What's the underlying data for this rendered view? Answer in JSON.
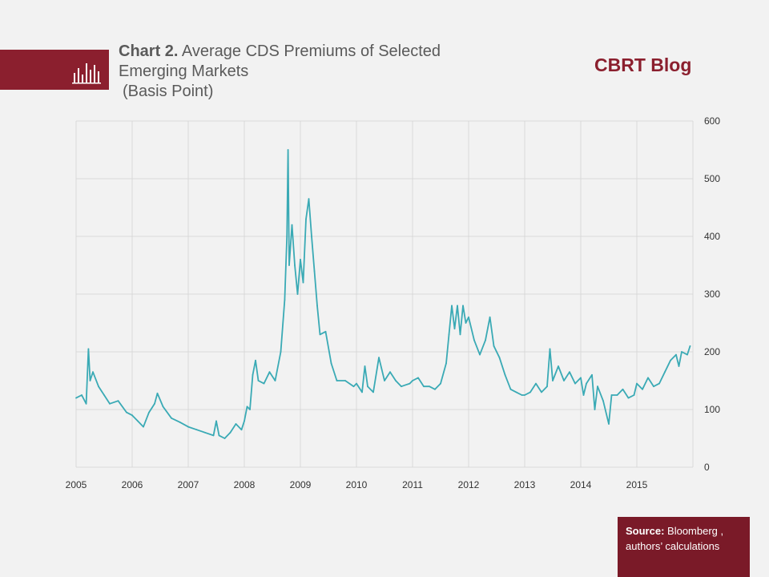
{
  "header": {
    "chart_number": "Chart 2.",
    "title_line1": "Average CDS Premiums of Selected",
    "title_line2": "Emerging Markets",
    "title_unit": "(Basis Point)",
    "brand": "CBRT Blog",
    "icon": "bar-chart-icon"
  },
  "footer": {
    "source_label": "Source:",
    "source_text1": "Bloomberg ,",
    "source_text2": "authors’ calculations"
  },
  "colors": {
    "accent": "#8b1f2e",
    "line": "#3aaab5",
    "grid": "#d9d9d9"
  },
  "chart_data": {
    "type": "line",
    "title": "Average CDS Premiums of Selected Emerging Markets",
    "ylabel": "(Basis Point)",
    "xlabel": "",
    "ylim": [
      0,
      600
    ],
    "xlim": [
      2005,
      2016
    ],
    "x_ticks": [
      "2005",
      "2006",
      "2007",
      "2008",
      "2009",
      "2010",
      "2011",
      "2012",
      "2013",
      "2014",
      "2015"
    ],
    "y_ticks": [
      "0",
      "100",
      "200",
      "300",
      "400",
      "500",
      "600"
    ],
    "y_axis_position": "right",
    "grid": true,
    "series": [
      {
        "color": "#3aaab5",
        "points": [
          [
            2005.0,
            120
          ],
          [
            2005.1,
            125
          ],
          [
            2005.18,
            110
          ],
          [
            2005.22,
            205
          ],
          [
            2005.25,
            150
          ],
          [
            2005.3,
            165
          ],
          [
            2005.4,
            140
          ],
          [
            2005.5,
            125
          ],
          [
            2005.6,
            110
          ],
          [
            2005.75,
            115
          ],
          [
            2005.9,
            95
          ],
          [
            2006.0,
            90
          ],
          [
            2006.1,
            80
          ],
          [
            2006.2,
            70
          ],
          [
            2006.3,
            95
          ],
          [
            2006.4,
            110
          ],
          [
            2006.45,
            128
          ],
          [
            2006.55,
            105
          ],
          [
            2006.7,
            85
          ],
          [
            2006.85,
            78
          ],
          [
            2007.0,
            70
          ],
          [
            2007.15,
            65
          ],
          [
            2007.3,
            60
          ],
          [
            2007.45,
            55
          ],
          [
            2007.5,
            80
          ],
          [
            2007.55,
            55
          ],
          [
            2007.65,
            50
          ],
          [
            2007.75,
            60
          ],
          [
            2007.85,
            75
          ],
          [
            2007.95,
            65
          ],
          [
            2008.0,
            80
          ],
          [
            2008.05,
            105
          ],
          [
            2008.1,
            100
          ],
          [
            2008.15,
            160
          ],
          [
            2008.2,
            185
          ],
          [
            2008.25,
            150
          ],
          [
            2008.35,
            145
          ],
          [
            2008.45,
            165
          ],
          [
            2008.55,
            150
          ],
          [
            2008.65,
            200
          ],
          [
            2008.72,
            290
          ],
          [
            2008.76,
            400
          ],
          [
            2008.78,
            550
          ],
          [
            2008.8,
            350
          ],
          [
            2008.85,
            420
          ],
          [
            2008.9,
            350
          ],
          [
            2008.95,
            300
          ],
          [
            2009.0,
            360
          ],
          [
            2009.05,
            320
          ],
          [
            2009.1,
            430
          ],
          [
            2009.15,
            465
          ],
          [
            2009.2,
            400
          ],
          [
            2009.25,
            340
          ],
          [
            2009.3,
            280
          ],
          [
            2009.35,
            230
          ],
          [
            2009.45,
            235
          ],
          [
            2009.55,
            180
          ],
          [
            2009.65,
            150
          ],
          [
            2009.8,
            150
          ],
          [
            2009.95,
            140
          ],
          [
            2010.0,
            145
          ],
          [
            2010.1,
            130
          ],
          [
            2010.15,
            175
          ],
          [
            2010.2,
            140
          ],
          [
            2010.3,
            130
          ],
          [
            2010.4,
            190
          ],
          [
            2010.5,
            150
          ],
          [
            2010.6,
            165
          ],
          [
            2010.7,
            150
          ],
          [
            2010.8,
            140
          ],
          [
            2010.95,
            145
          ],
          [
            2011.0,
            150
          ],
          [
            2011.1,
            155
          ],
          [
            2011.2,
            140
          ],
          [
            2011.3,
            140
          ],
          [
            2011.4,
            135
          ],
          [
            2011.5,
            145
          ],
          [
            2011.6,
            180
          ],
          [
            2011.65,
            230
          ],
          [
            2011.7,
            280
          ],
          [
            2011.75,
            240
          ],
          [
            2011.8,
            280
          ],
          [
            2011.85,
            230
          ],
          [
            2011.9,
            280
          ],
          [
            2011.95,
            250
          ],
          [
            2012.0,
            260
          ],
          [
            2012.1,
            220
          ],
          [
            2012.2,
            195
          ],
          [
            2012.3,
            220
          ],
          [
            2012.38,
            260
          ],
          [
            2012.45,
            210
          ],
          [
            2012.55,
            190
          ],
          [
            2012.65,
            160
          ],
          [
            2012.75,
            135
          ],
          [
            2012.85,
            130
          ],
          [
            2012.95,
            125
          ],
          [
            2013.0,
            125
          ],
          [
            2013.1,
            130
          ],
          [
            2013.2,
            145
          ],
          [
            2013.3,
            130
          ],
          [
            2013.4,
            140
          ],
          [
            2013.45,
            205
          ],
          [
            2013.5,
            150
          ],
          [
            2013.6,
            175
          ],
          [
            2013.7,
            150
          ],
          [
            2013.8,
            165
          ],
          [
            2013.9,
            145
          ],
          [
            2014.0,
            155
          ],
          [
            2014.05,
            125
          ],
          [
            2014.1,
            145
          ],
          [
            2014.2,
            160
          ],
          [
            2014.25,
            100
          ],
          [
            2014.3,
            140
          ],
          [
            2014.4,
            115
          ],
          [
            2014.5,
            75
          ],
          [
            2014.55,
            125
          ],
          [
            2014.65,
            125
          ],
          [
            2014.75,
            135
          ],
          [
            2014.85,
            120
          ],
          [
            2014.95,
            125
          ],
          [
            2015.0,
            145
          ],
          [
            2015.1,
            135
          ],
          [
            2015.2,
            155
          ],
          [
            2015.3,
            140
          ],
          [
            2015.4,
            145
          ],
          [
            2015.5,
            165
          ],
          [
            2015.6,
            185
          ],
          [
            2015.7,
            195
          ],
          [
            2015.75,
            175
          ],
          [
            2015.8,
            200
          ],
          [
            2015.9,
            195
          ],
          [
            2015.95,
            210
          ]
        ]
      }
    ]
  }
}
